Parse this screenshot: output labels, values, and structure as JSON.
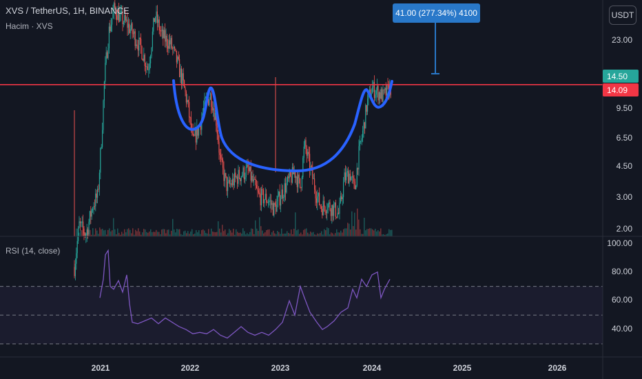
{
  "header": {
    "symbol_line": "XVS / TetherUS, 1H, BINANCE",
    "volume_line": "Hacim · XVS"
  },
  "currency_button": {
    "label": "USDT"
  },
  "price_axis": {
    "scale": "log",
    "ticks": [
      "23.00",
      "14.50",
      "9.50",
      "6.50",
      "4.50",
      "3.00",
      "2.00"
    ],
    "current_price": "14.50",
    "last_price": "14.09",
    "current_price_color": "#26a69a",
    "last_price_color": "#f23645"
  },
  "rsi_panel": {
    "title": "RSI (14, close)",
    "ticks": [
      "100.00",
      "80.00",
      "60.00",
      "40.00"
    ],
    "upper_band": 70,
    "middle_band": 50,
    "lower_band": 30,
    "line_color": "#7e57c2"
  },
  "time_axis": {
    "ticks": [
      "2021",
      "2022",
      "2023",
      "2024",
      "2025",
      "2026"
    ]
  },
  "measure_tool": {
    "label": "41.00 (277.34%) 4100"
  },
  "drawings": {
    "resistance_line_color": "#f23645",
    "cup_handle_color": "#2962ff",
    "resistance_level": 14.5
  },
  "colors": {
    "background": "#131722",
    "up_candle": "#26a69a",
    "down_candle": "#ef5350"
  }
}
